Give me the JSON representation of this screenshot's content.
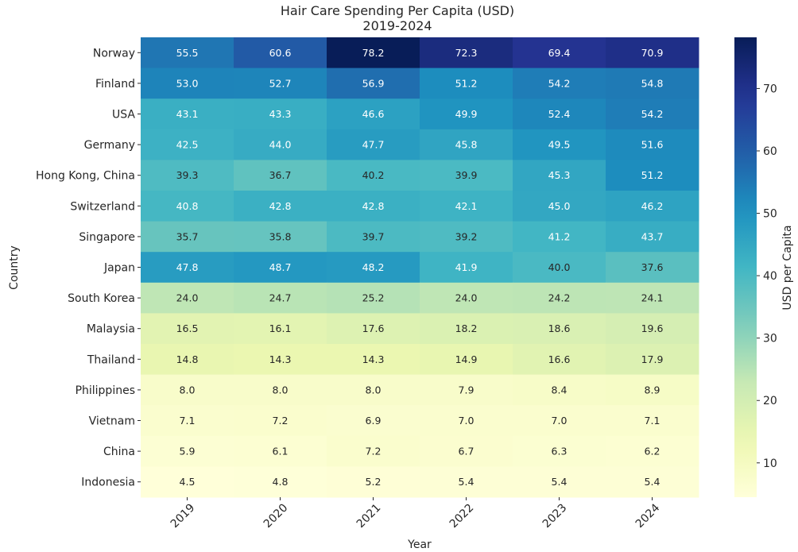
{
  "chart_data": {
    "type": "heatmap",
    "title": "Hair Care Spending Per Capita (USD)",
    "subtitle": "2019-2024",
    "xlabel": "Year",
    "ylabel": "Country",
    "colorbar_label": "USD per Capita",
    "colormap": "YlGnBu",
    "color_range": [
      4.5,
      78.2
    ],
    "colorbar_ticks": [
      10,
      20,
      30,
      40,
      50,
      60,
      70
    ],
    "x_categories": [
      "2019",
      "2020",
      "2021",
      "2022",
      "2023",
      "2024"
    ],
    "y_categories": [
      "Norway",
      "Finland",
      "USA",
      "Germany",
      "Hong Kong, China",
      "Switzerland",
      "Singapore",
      "Japan",
      "South Korea",
      "Malaysia",
      "Thailand",
      "Philippines",
      "Vietnam",
      "China",
      "Indonesia"
    ],
    "values": [
      [
        55.5,
        60.6,
        78.2,
        72.3,
        69.4,
        70.9
      ],
      [
        53.0,
        52.7,
        56.9,
        51.2,
        54.2,
        54.8
      ],
      [
        43.1,
        43.3,
        46.6,
        49.9,
        52.4,
        54.2
      ],
      [
        42.5,
        44.0,
        47.7,
        45.8,
        49.5,
        51.6
      ],
      [
        39.3,
        36.7,
        40.2,
        39.9,
        45.3,
        51.2
      ],
      [
        40.8,
        42.8,
        42.8,
        42.1,
        45.0,
        46.2
      ],
      [
        35.7,
        35.8,
        39.7,
        39.2,
        41.2,
        43.7
      ],
      [
        47.8,
        48.7,
        48.2,
        41.9,
        40.0,
        37.6
      ],
      [
        24.0,
        24.7,
        25.2,
        24.0,
        24.2,
        24.1
      ],
      [
        16.5,
        16.1,
        17.6,
        18.2,
        18.6,
        19.6
      ],
      [
        14.8,
        14.3,
        14.3,
        14.9,
        16.6,
        17.9
      ],
      [
        8.0,
        8.0,
        8.0,
        7.9,
        8.4,
        8.9
      ],
      [
        7.1,
        7.2,
        6.9,
        7.0,
        7.0,
        7.1
      ],
      [
        5.9,
        6.1,
        7.2,
        6.7,
        6.3,
        6.2
      ],
      [
        4.5,
        4.8,
        5.2,
        5.4,
        5.4,
        5.4
      ]
    ],
    "annotation_format": "0.1f",
    "grid": false,
    "legend": "colorbar-right"
  }
}
